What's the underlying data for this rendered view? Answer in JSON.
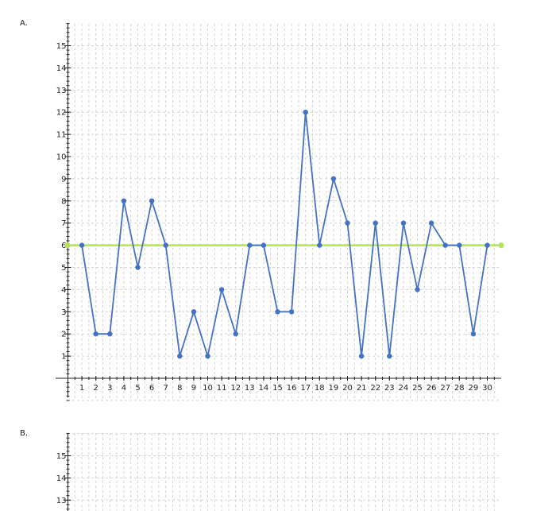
{
  "panels": [
    {
      "label": "A."
    },
    {
      "label": "B."
    }
  ],
  "chart_data": [
    {
      "type": "line",
      "panel": "A.",
      "x": [
        1,
        2,
        3,
        4,
        5,
        6,
        7,
        8,
        9,
        10,
        11,
        12,
        13,
        14,
        15,
        16,
        17,
        18,
        19,
        20,
        21,
        22,
        23,
        24,
        25,
        26,
        27,
        28,
        29,
        30
      ],
      "series": [
        {
          "values": [
            6,
            2,
            2,
            8,
            5,
            8,
            6,
            1,
            3,
            1,
            4,
            2,
            6,
            6,
            3,
            3,
            12,
            6,
            9,
            7,
            1,
            7,
            1,
            7,
            4,
            7,
            6,
            6,
            2,
            6
          ],
          "color": "#4472c4"
        }
      ],
      "reference_line": {
        "y": 6,
        "color": "#b5e35a"
      },
      "xticks": [
        "1",
        "2",
        "3",
        "4",
        "5",
        "6",
        "7",
        "8",
        "9",
        "10",
        "11",
        "12",
        "13",
        "14",
        "15",
        "16",
        "17",
        "18",
        "19",
        "20",
        "21",
        "22",
        "23",
        "24",
        "25",
        "26",
        "27",
        "28",
        "29",
        "30"
      ],
      "yticks": [
        "1",
        "2",
        "3",
        "4",
        "5",
        "6",
        "7",
        "8",
        "9",
        "10",
        "11",
        "12",
        "13",
        "14",
        "15"
      ],
      "xlim": [
        0,
        31
      ],
      "ylim": [
        -1,
        16
      ],
      "grid": true,
      "title": "",
      "xlabel": "",
      "ylabel": ""
    },
    {
      "type": "line",
      "panel": "B.",
      "series": [],
      "yticks": [
        "13",
        "14",
        "15"
      ],
      "grid": true,
      "title": "",
      "xlabel": "",
      "ylabel": ""
    }
  ]
}
